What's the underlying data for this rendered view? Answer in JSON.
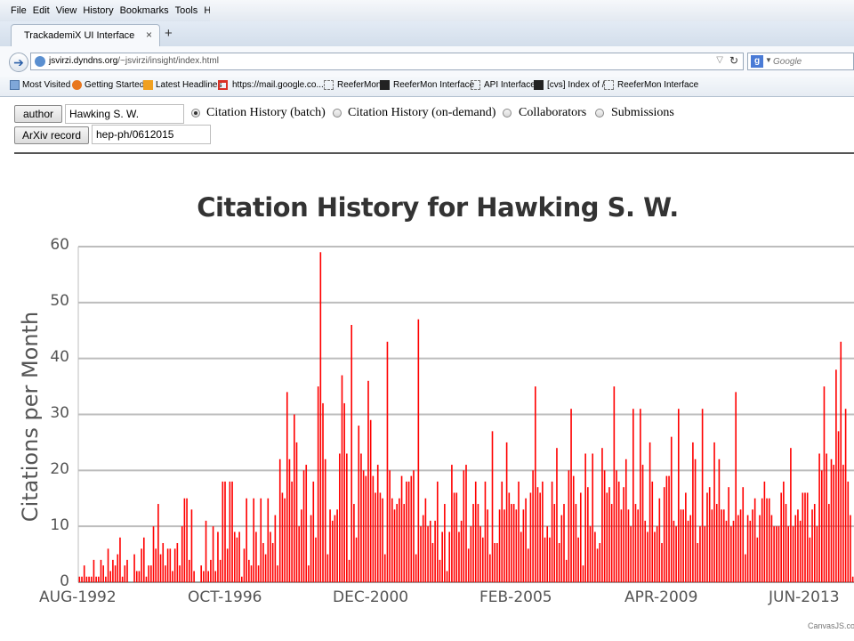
{
  "browser": {
    "menu": [
      "File",
      "Edit",
      "View",
      "History",
      "Bookmarks",
      "Tools",
      "Help"
    ],
    "tab_title": "TrackademiX UI Interface",
    "tab_close": "×",
    "new_tab": "+",
    "url_host": "jsvirzi.dyndns.org",
    "url_path": "/~jsvirzi/insight/index.html",
    "search_placeholder": "Google",
    "bookmarks": [
      "Most Visited",
      "Getting Started",
      "Latest Headlines",
      "https://mail.google.co...",
      "ReeferMon",
      "ReeferMon Interface",
      "API Interface",
      "[cvs] Index of /",
      "ReeferMon Interface"
    ]
  },
  "form": {
    "author_button": "author",
    "author_value": "Hawking S. W.",
    "arxiv_button": "ArXiv record",
    "arxiv_value": "hep-ph/0612015",
    "options": [
      {
        "label": "Citation History (batch)",
        "checked": true
      },
      {
        "label": "Citation History (on-demand)",
        "checked": false
      },
      {
        "label": "Collaborators",
        "checked": false
      },
      {
        "label": "Submissions",
        "checked": false
      }
    ]
  },
  "chart_data": {
    "type": "bar",
    "title": "Citation History for Hawking S. W.",
    "ylabel": "Citations per Month",
    "ylim": [
      0,
      60
    ],
    "yticks": [
      0,
      10,
      20,
      30,
      40,
      50,
      60
    ],
    "xticks": [
      "AUG-1992",
      "OCT-1996",
      "DEC-2000",
      "FEB-2005",
      "APR-2009",
      "JUN-2013"
    ],
    "x_start": "1992-08",
    "grid": true,
    "bar_color": "#ff0000",
    "credit": "CanvasJS.co",
    "values": [
      1,
      1,
      3,
      1,
      1,
      1,
      4,
      1,
      1,
      4,
      3,
      1,
      6,
      2,
      4,
      3,
      5,
      8,
      1,
      3,
      4,
      0,
      0,
      5,
      2,
      2,
      6,
      8,
      1,
      3,
      3,
      10,
      6,
      14,
      5,
      7,
      3,
      6,
      6,
      2,
      6,
      7,
      3,
      10,
      15,
      15,
      4,
      13,
      2,
      0,
      0,
      3,
      2,
      11,
      2,
      4,
      10,
      2,
      9,
      4,
      18,
      18,
      6,
      18,
      18,
      9,
      8,
      9,
      1,
      6,
      15,
      4,
      3,
      15,
      9,
      3,
      15,
      7,
      5,
      15,
      9,
      7,
      12,
      3,
      22,
      16,
      15,
      34,
      22,
      18,
      30,
      25,
      10,
      13,
      20,
      21,
      3,
      12,
      18,
      8,
      35,
      59,
      32,
      22,
      5,
      13,
      11,
      12,
      13,
      23,
      37,
      32,
      23,
      4,
      46,
      14,
      8,
      28,
      23,
      20,
      19,
      36,
      29,
      19,
      16,
      21,
      16,
      15,
      5,
      43,
      20,
      15,
      13,
      14,
      15,
      19,
      14,
      18,
      18,
      19,
      20,
      5,
      47,
      10,
      12,
      15,
      10,
      11,
      7,
      11,
      18,
      4,
      9,
      14,
      2,
      9,
      21,
      16,
      16,
      9,
      11,
      20,
      21,
      6,
      10,
      14,
      18,
      14,
      10,
      8,
      18,
      13,
      5,
      27,
      7,
      7,
      13,
      18,
      13,
      25,
      16,
      14,
      14,
      13,
      18,
      9,
      13,
      15,
      6,
      16,
      20,
      35,
      17,
      16,
      18,
      8,
      10,
      8,
      18,
      14,
      24,
      7,
      12,
      14,
      4,
      20,
      31,
      19,
      14,
      8,
      16,
      3,
      23,
      17,
      10,
      23,
      9,
      6,
      7,
      24,
      20,
      16,
      17,
      14,
      35,
      20,
      18,
      13,
      17,
      22,
      13,
      10,
      31,
      14,
      13,
      31,
      21,
      11,
      9,
      25,
      18,
      9,
      10,
      15,
      7,
      17,
      19,
      19,
      26,
      11,
      10,
      31,
      13,
      13,
      16,
      11,
      12,
      25,
      22,
      7,
      10,
      31,
      10,
      16,
      17,
      13,
      25,
      14,
      22,
      13,
      13,
      11,
      17,
      10,
      11,
      34,
      12,
      13,
      17,
      5,
      12,
      11,
      13,
      15,
      8,
      12,
      15,
      18,
      15,
      15,
      12,
      10,
      10,
      10,
      16,
      18,
      14,
      10,
      24,
      10,
      12,
      13,
      11,
      16,
      16,
      16,
      8,
      13,
      14,
      10,
      23,
      20,
      35,
      23,
      14,
      22,
      21,
      38,
      27,
      43,
      21,
      31,
      18,
      12,
      1
    ]
  }
}
